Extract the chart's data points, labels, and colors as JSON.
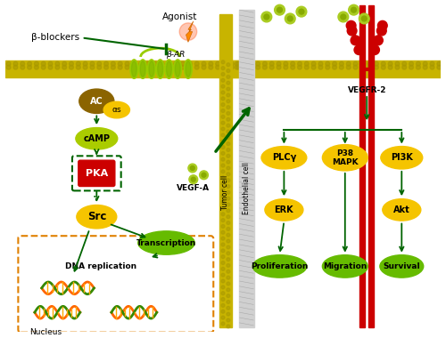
{
  "bg_color": "#ffffff",
  "dark_green": "#006400",
  "yellow_ellipse": "#f5c400",
  "yellow_green_ellipse": "#aacc00",
  "bright_green_ellipse": "#66bb00",
  "orange_brown": "#8b6400",
  "red_rect": "#cc0000",
  "nucleus_border": "#e08000",
  "membrane_yellow": "#c8b400",
  "membrane_light": "#d4c832",
  "helix_green": "#99cc00",
  "labels": {
    "beta_blockers": "β-blockers",
    "agonist": "Agonist",
    "beta_ar": "β-AR",
    "ac": "AC",
    "alphas": "αs",
    "camp": "cAMP",
    "pka": "PKA",
    "src": "Src",
    "vegfa": "VEGF-A",
    "transcription": "Transcription",
    "dna_replication": "DNA replication",
    "nucleus": "Nucleus",
    "tumor_cell": "Tumor cell",
    "endothelial_cell": "Endothelial cell",
    "vegfr2": "VEGFR-2",
    "plcg": "PLCγ",
    "p38mapk": "P38\nMAPK",
    "pi3k": "PI3K",
    "erk": "ERK",
    "akt": "Akt",
    "proliferation": "Proliferation",
    "migration": "Migration",
    "survival": "Survival"
  }
}
